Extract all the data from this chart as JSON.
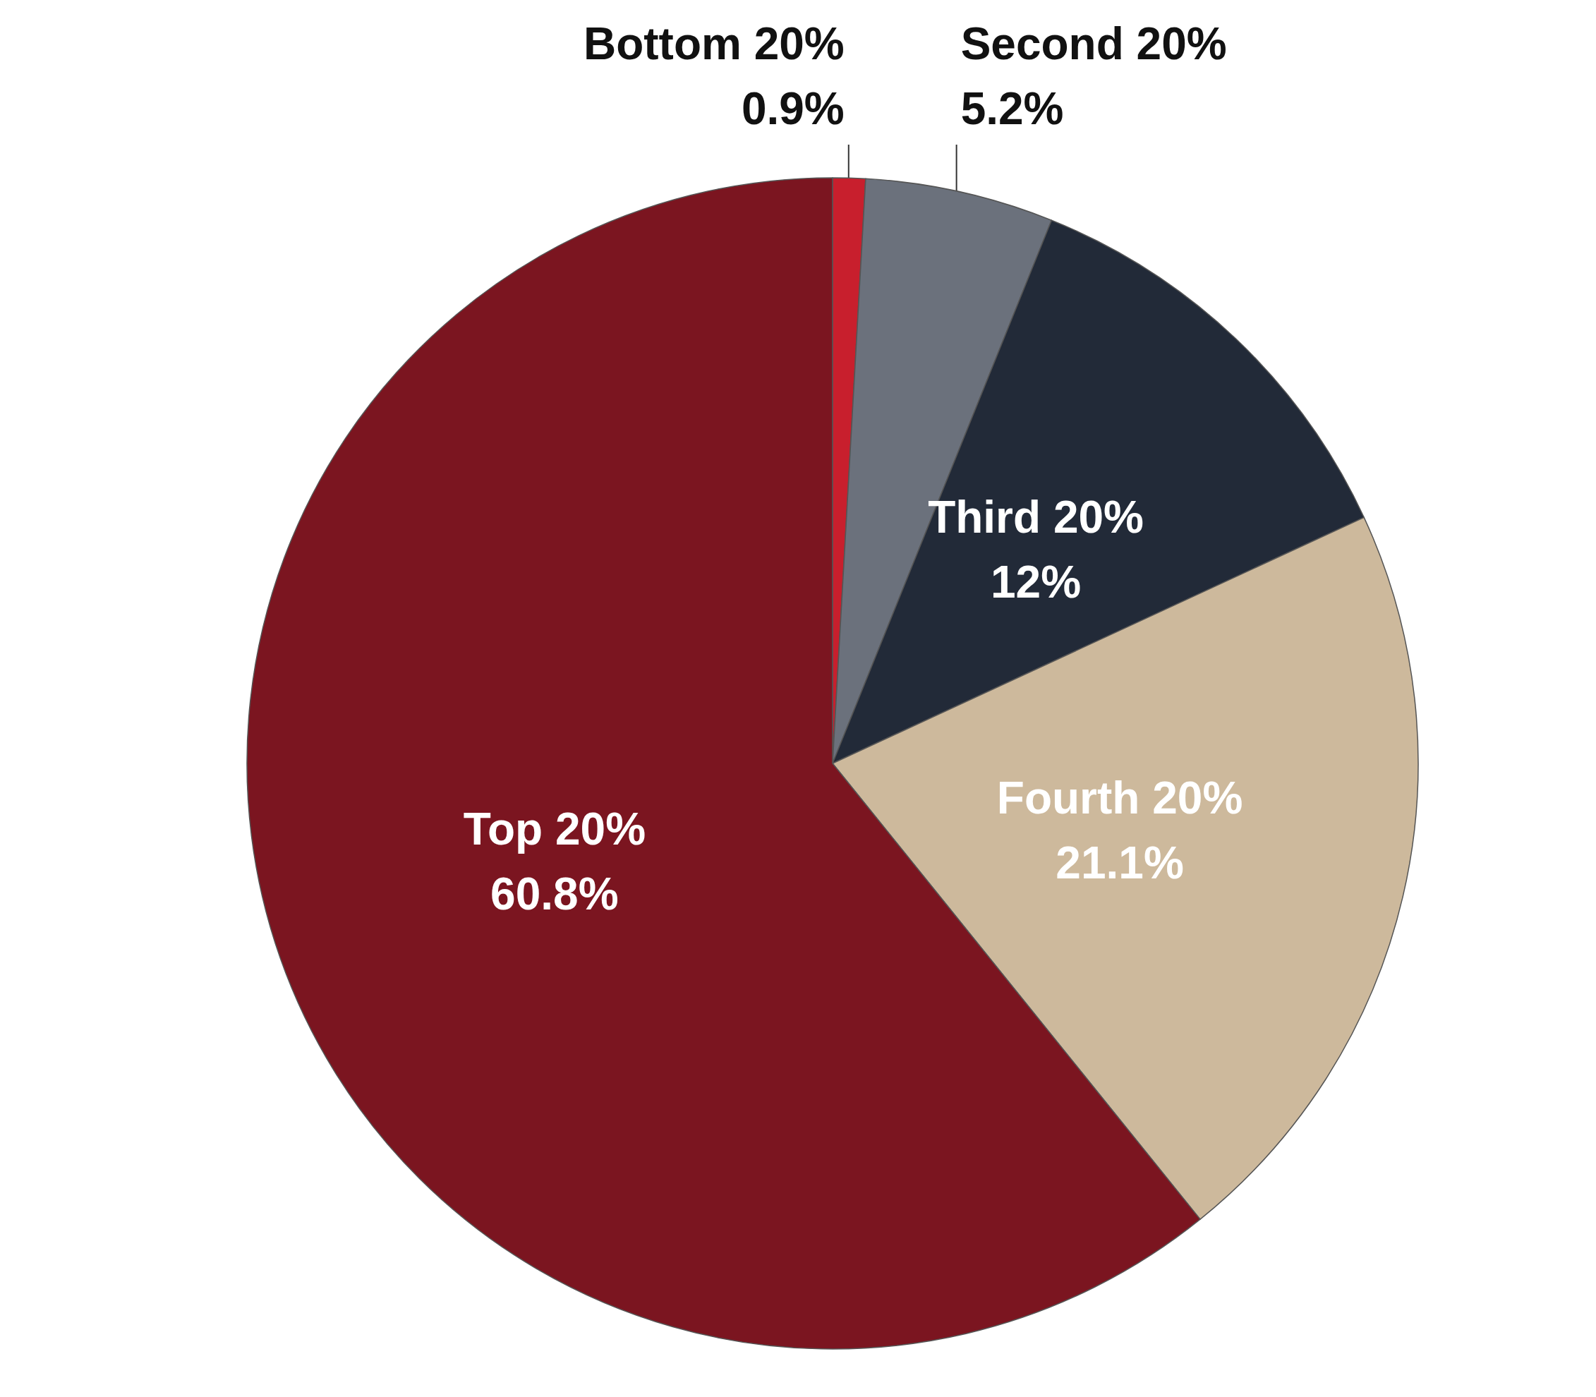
{
  "chart_data": {
    "type": "pie",
    "categories": [
      "Bottom 20%",
      "Second 20%",
      "Third 20%",
      "Fourth 20%",
      "Top 20%"
    ],
    "values": [
      0.9,
      5.2,
      12,
      21.1,
      60.8
    ],
    "value_labels": [
      "0.9%",
      "5.2%",
      "12%",
      "21.1%",
      "60.8%"
    ],
    "colors": [
      "#c81f2d",
      "#6b717c",
      "#222a38",
      "#cdb99c",
      "#7b1520"
    ]
  }
}
